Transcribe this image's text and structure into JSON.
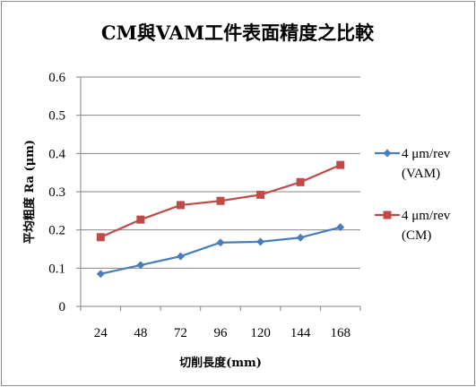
{
  "chart_data": {
    "type": "line",
    "title": "CM與VAM工件表面精度之比較",
    "xlabel": "切削長度(mm)",
    "ylabel": "平均粗度 Ra  (μm)",
    "categories": [
      "24",
      "48",
      "72",
      "96",
      "120",
      "144",
      "168"
    ],
    "ylim": [
      0,
      0.6
    ],
    "yticks": [
      "0",
      "0.1",
      "0.2",
      "0.3",
      "0.4",
      "0.5",
      "0.6"
    ],
    "grid": true,
    "legend_position": "right",
    "series": [
      {
        "name": "4 μm/rev (VAM)",
        "legend_lines": [
          "4 μm/rev",
          "(VAM)"
        ],
        "color": "#4a7ebb",
        "marker": "diamond",
        "values": [
          0.085,
          0.108,
          0.131,
          0.167,
          0.169,
          0.18,
          0.207
        ]
      },
      {
        "name": "4 μm/rev (CM)",
        "legend_lines": [
          "4 μm/rev",
          "(CM)"
        ],
        "color": "#be4b48",
        "marker": "square",
        "values": [
          0.181,
          0.227,
          0.265,
          0.276,
          0.292,
          0.325,
          0.37
        ]
      }
    ]
  }
}
